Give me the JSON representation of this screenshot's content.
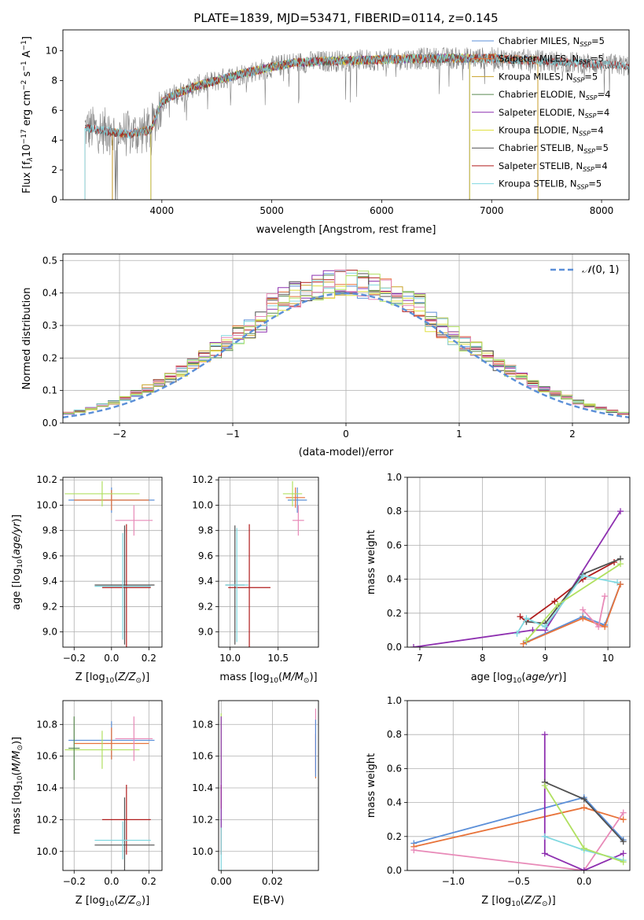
{
  "figure": {
    "title": "PLATE=1839, MJD=53471, FIBERID=0114, z=0.145"
  },
  "colors": {
    "Chabrier MILES": "#5b8fd8",
    "Salpeter MILES": "#e8733a",
    "Kroupa MILES": "#c9a227",
    "Chabrier ELODIE": "#5a8a50",
    "Salpeter ELODIE": "#8e30b0",
    "Kroupa ELODIE": "#e0e040",
    "Chabrier STELIB": "#505050",
    "Salpeter STELIB": "#b01c1c",
    "Kroupa STELIB": "#80d8e0",
    "normal": "#5b8fd8",
    "pink": "#e88ab8",
    "yellowgreen": "#b0e060"
  },
  "chart_data": [
    {
      "id": "spectrum",
      "type": "line",
      "title": "PLATE=1839, MJD=53471, FIBERID=0114, z=0.145",
      "xlabel": "wavelength [Angstrom, rest frame]",
      "ylabel": "Flux [f_λ 10^-17 erg cm^-2 s^-1 A^-1]",
      "xlim": [
        3100,
        8250
      ],
      "ylim": [
        0,
        11.4
      ],
      "xticks": [
        4000,
        5000,
        6000,
        7000,
        8000
      ],
      "yticks": [
        0,
        2,
        4,
        6,
        8,
        10
      ],
      "grid": false,
      "legend_position": "upper right",
      "continuum": {
        "x": [
          3300,
          3500,
          3700,
          3900,
          4000,
          4100,
          4300,
          4500,
          4700,
          5000,
          5200,
          5500,
          6000,
          6500,
          7000,
          7500,
          8000,
          8250
        ],
        "y": [
          4.8,
          4.6,
          4.4,
          4.7,
          6.6,
          7.0,
          7.6,
          8.0,
          8.4,
          8.9,
          9.2,
          9.3,
          9.4,
          9.5,
          9.5,
          9.3,
          9.1,
          9.0
        ]
      },
      "legend": [
        "Chabrier MILES, N_SSP=5",
        "Salpeter MILES, N_SSP=5",
        "Kroupa MILES, N_SSP=5",
        "Chabrier ELODIE, N_SSP=4",
        "Salpeter ELODIE, N_SSP=4",
        "Kroupa ELODIE, N_SSP=4",
        "Chabrier STELIB, N_SSP=5",
        "Salpeter STELIB, N_SSP=4",
        "Kroupa STELIB, N_SSP=5"
      ]
    },
    {
      "id": "residuals",
      "type": "line",
      "xlabel": "(data-model)/error",
      "ylabel": "Normed distribution",
      "xlim": [
        -2.5,
        2.5
      ],
      "ylim": [
        0,
        0.52
      ],
      "xticks": [
        -2,
        -1,
        0,
        1,
        2
      ],
      "yticks": [
        0.0,
        0.1,
        0.2,
        0.3,
        0.4,
        0.5
      ],
      "grid": true,
      "legend": [
        "N(0,1)"
      ],
      "legend_position": "upper right",
      "bin_width": 0.1
    },
    {
      "id": "age_vs_Z",
      "type": "scatter",
      "xlabel": "Z [log10(Z/Z⊙)]",
      "ylabel": "age [log10(age/yr)]",
      "xlim": [
        -0.26,
        0.27
      ],
      "ylim": [
        8.88,
        10.22
      ],
      "xticks": [
        -0.2,
        0.0,
        0.2
      ],
      "yticks": [
        9.0,
        9.2,
        9.4,
        9.6,
        9.8,
        10.0,
        10.2
      ],
      "grid": true,
      "points": [
        {
          "x": 0.0,
          "y": 10.04,
          "xerr": 0.23,
          "yerr": 0.1,
          "c": "Chabrier MILES"
        },
        {
          "x": 0.0,
          "y": 10.04,
          "xerr": 0.2,
          "yerr": 0.08,
          "c": "Salpeter MILES"
        },
        {
          "x": -0.05,
          "y": 10.09,
          "xerr": 0.2,
          "yerr": 0.1,
          "c": "yellowgreen"
        },
        {
          "x": 0.12,
          "y": 9.88,
          "xerr": 0.1,
          "yerr": 0.12,
          "c": "pink"
        },
        {
          "x": 0.07,
          "y": 9.37,
          "xerr": 0.16,
          "yerr": 0.47,
          "c": "Chabrier STELIB"
        },
        {
          "x": 0.08,
          "y": 9.35,
          "xerr": 0.13,
          "yerr": 0.5,
          "c": "Salpeter STELIB"
        },
        {
          "x": 0.06,
          "y": 9.36,
          "xerr": 0.15,
          "yerr": 0.42,
          "c": "Kroupa STELIB"
        }
      ]
    },
    {
      "id": "age_vs_mass",
      "type": "scatter",
      "xlabel": "mass [log10(M/M⊙)]",
      "ylabel": "",
      "xlim": [
        9.88,
        10.92
      ],
      "ylim": [
        8.88,
        10.22
      ],
      "xticks": [
        10.0,
        10.5
      ],
      "yticks": [
        9.0,
        9.2,
        9.4,
        9.6,
        9.8,
        10.0,
        10.2
      ],
      "grid": true,
      "points": [
        {
          "x": 10.7,
          "y": 10.04,
          "xerr": 0.1,
          "yerr": 0.1,
          "c": "Chabrier MILES"
        },
        {
          "x": 10.68,
          "y": 10.06,
          "xerr": 0.1,
          "yerr": 0.08,
          "c": "Salpeter MILES"
        },
        {
          "x": 10.65,
          "y": 10.09,
          "xerr": 0.1,
          "yerr": 0.1,
          "c": "yellowgreen"
        },
        {
          "x": 10.71,
          "y": 9.88,
          "xerr": 0.06,
          "yerr": 0.12,
          "c": "pink"
        },
        {
          "x": 10.05,
          "y": 9.37,
          "xerr": 0.1,
          "yerr": 0.47,
          "c": "Chabrier STELIB"
        },
        {
          "x": 10.2,
          "y": 9.35,
          "xerr": 0.22,
          "yerr": 0.5,
          "c": "Salpeter STELIB"
        },
        {
          "x": 10.07,
          "y": 9.37,
          "xerr": 0.12,
          "yerr": 0.45,
          "c": "Kroupa STELIB"
        }
      ]
    },
    {
      "id": "weight_vs_age",
      "type": "line",
      "xlabel": "age [log10(age/yr)]",
      "ylabel": "mass weight",
      "xlim": [
        6.8,
        10.35
      ],
      "ylim": [
        0,
        1.0
      ],
      "xticks": [
        7,
        8,
        9,
        10
      ],
      "yticks": [
        0.0,
        0.2,
        0.4,
        0.6,
        0.8,
        1.0
      ],
      "grid": true,
      "series": [
        {
          "c": "Salpeter ELODIE",
          "x": [
            6.9,
            8.8,
            9.0,
            10.2
          ],
          "y": [
            0.0,
            0.1,
            0.1,
            0.8
          ]
        },
        {
          "c": "Salpeter STELIB",
          "x": [
            8.6,
            8.7,
            9.15,
            9.6,
            10.1
          ],
          "y": [
            0.18,
            0.15,
            0.27,
            0.4,
            0.5
          ]
        },
        {
          "c": "Chabrier STELIB",
          "x": [
            8.7,
            9.0,
            9.6,
            10.2
          ],
          "y": [
            0.15,
            0.14,
            0.43,
            0.52
          ]
        },
        {
          "c": "Kroupa STELIB",
          "x": [
            8.55,
            8.7,
            9.0,
            9.6,
            10.15
          ],
          "y": [
            0.08,
            0.17,
            0.12,
            0.42,
            0.38
          ]
        },
        {
          "c": "Chabrier MILES",
          "x": [
            8.7,
            9.6,
            9.95,
            10.2
          ],
          "y": [
            0.03,
            0.18,
            0.13,
            0.37
          ]
        },
        {
          "c": "Salpeter MILES",
          "x": [
            8.65,
            9.6,
            9.95,
            10.2
          ],
          "y": [
            0.02,
            0.17,
            0.12,
            0.37
          ]
        },
        {
          "c": "yellowgreen",
          "x": [
            8.7,
            9.2,
            10.2
          ],
          "y": [
            0.04,
            0.25,
            0.49
          ]
        },
        {
          "c": "pink",
          "x": [
            9.6,
            9.85,
            9.95
          ],
          "y": [
            0.22,
            0.12,
            0.3
          ]
        }
      ]
    },
    {
      "id": "mass_vs_Z",
      "type": "scatter",
      "xlabel": "Z [log10(Z/Z⊙)]",
      "ylabel": "mass [log10(M/M⊙)]",
      "xlim": [
        -0.26,
        0.27
      ],
      "ylim": [
        9.88,
        10.95
      ],
      "xticks": [
        -0.2,
        0.0,
        0.2
      ],
      "yticks": [
        10.0,
        10.2,
        10.4,
        10.6,
        10.8
      ],
      "grid": true,
      "points": [
        {
          "x": 0.0,
          "y": 10.7,
          "xerr": 0.23,
          "yerr": 0.12,
          "c": "Chabrier MILES"
        },
        {
          "x": 0.0,
          "y": 10.68,
          "xerr": 0.2,
          "yerr": 0.1,
          "c": "Salpeter MILES"
        },
        {
          "x": -0.05,
          "y": 10.64,
          "xerr": 0.2,
          "yerr": 0.12,
          "c": "yellowgreen"
        },
        {
          "x": -0.2,
          "y": 10.65,
          "xerr": 0.03,
          "yerr": 0.2,
          "c": "Chabrier ELODIE"
        },
        {
          "x": 0.12,
          "y": 10.71,
          "xerr": 0.1,
          "yerr": 0.14,
          "c": "pink"
        },
        {
          "x": 0.07,
          "y": 10.04,
          "xerr": 0.16,
          "yerr": 0.3,
          "c": "Chabrier STELIB"
        },
        {
          "x": 0.08,
          "y": 10.2,
          "xerr": 0.13,
          "yerr": 0.22,
          "c": "Salpeter STELIB"
        },
        {
          "x": 0.06,
          "y": 10.07,
          "xerr": 0.15,
          "yerr": 0.12,
          "c": "Kroupa STELIB"
        }
      ]
    },
    {
      "id": "mass_vs_ebv",
      "type": "scatter",
      "xlabel": "E(B-V)",
      "ylabel": "",
      "xlim": [
        -0.001,
        0.038
      ],
      "ylim": [
        9.88,
        10.95
      ],
      "xticks": [
        0.0,
        0.02
      ],
      "yticks": [
        10.0,
        10.2,
        10.4,
        10.6,
        10.8
      ],
      "grid": true,
      "points": [
        {
          "x": 0.0,
          "y": 10.65,
          "xerr": 0.0,
          "yerr": 0.22,
          "c": "yellowgreen"
        },
        {
          "x": 0.0,
          "y": 10.2,
          "xerr": 0.0,
          "yerr": 0.22,
          "c": "Salpeter STELIB"
        },
        {
          "x": 0.0,
          "y": 10.05,
          "xerr": 0.0,
          "yerr": 0.22,
          "c": "Kroupa STELIB"
        },
        {
          "x": 0.0,
          "y": 10.5,
          "xerr": 0.0,
          "yerr": 0.35,
          "c": "Salpeter ELODIE"
        },
        {
          "x": 0.0369,
          "y": 10.6,
          "xerr": 0.0,
          "yerr": 0.14,
          "c": "Salpeter MILES"
        },
        {
          "x": 0.0369,
          "y": 10.7,
          "xerr": 0.0,
          "yerr": 0.2,
          "c": "pink"
        },
        {
          "x": 0.0369,
          "y": 10.65,
          "xerr": 0.0,
          "yerr": 0.18,
          "c": "Chabrier MILES"
        }
      ]
    },
    {
      "id": "weight_vs_Z",
      "type": "line",
      "xlabel": "Z [log10(Z/Z⊙)]",
      "ylabel": "mass weight",
      "xlim": [
        -1.35,
        0.35
      ],
      "ylim": [
        0,
        1.0
      ],
      "xticks": [
        -1.0,
        -0.5,
        0.0
      ],
      "yticks": [
        0.0,
        0.2,
        0.4,
        0.6,
        0.8,
        1.0
      ],
      "grid": true,
      "series": [
        {
          "c": "Chabrier MILES",
          "x": [
            -1.3,
            0.0,
            0.3
          ],
          "y": [
            0.16,
            0.43,
            0.18
          ]
        },
        {
          "c": "Salpeter MILES",
          "x": [
            -1.3,
            0.0,
            0.3
          ],
          "y": [
            0.14,
            0.37,
            0.3
          ]
        },
        {
          "c": "pink",
          "x": [
            -1.3,
            0.0,
            0.3
          ],
          "y": [
            0.12,
            0.0,
            0.34
          ]
        },
        {
          "c": "Salpeter ELODIE",
          "x": [
            -0.3,
            -0.3,
            0.0,
            0.3
          ],
          "y": [
            0.8,
            0.1,
            0.0,
            0.1
          ]
        },
        {
          "c": "Kroupa STELIB",
          "x": [
            -0.3,
            0.0,
            0.3
          ],
          "y": [
            0.2,
            0.12,
            0.06
          ]
        },
        {
          "c": "Chabrier STELIB",
          "x": [
            -0.3,
            0.0,
            0.3
          ],
          "y": [
            0.52,
            0.42,
            0.17
          ]
        },
        {
          "c": "yellowgreen",
          "x": [
            -0.3,
            0.0,
            0.3
          ],
          "y": [
            0.5,
            0.13,
            0.05
          ]
        }
      ]
    }
  ]
}
